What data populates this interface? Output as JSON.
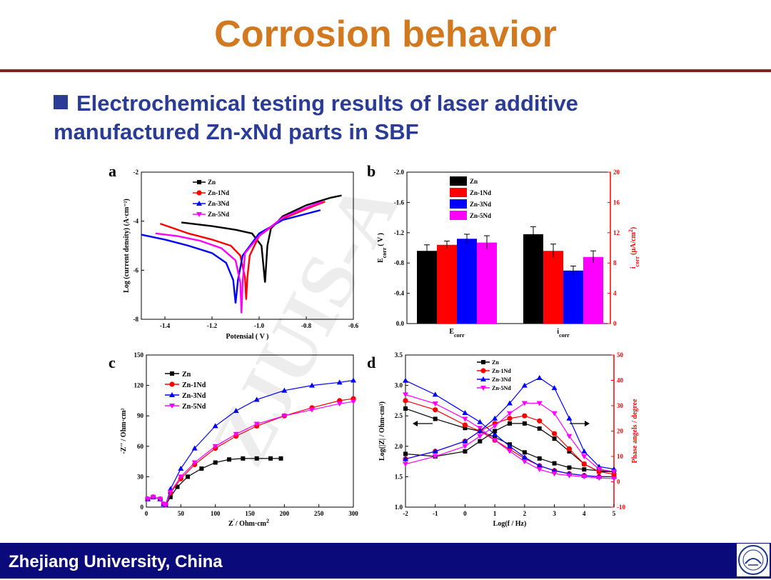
{
  "slide": {
    "title": "Corrosion behavior",
    "subtitle_line1": "Electrochemical testing results of laser additive",
    "subtitle_line2": "manufactured Zn-xNd parts in SBF",
    "footer": "Zhejiang University, China",
    "watermark": "ZJUIS-A"
  },
  "colors": {
    "Zn": "#000000",
    "Zn-1Nd": "#ff0000",
    "Zn-3Nd": "#0000ff",
    "Zn-5Nd": "#ff00ff"
  },
  "chart_data": [
    {
      "panel": "a",
      "type": "line",
      "xlabel": "Potensial ( V )",
      "ylabel": "Log (current density) (A·cm⁻²)",
      "xlim": [
        -1.5,
        -0.6
      ],
      "ylim": [
        -8,
        -2
      ],
      "xticks": [
        "-1.4",
        "-1.2",
        "-1.0",
        "-0.8",
        "-0.6"
      ],
      "yticks": [
        "-2",
        "-4",
        "-6",
        "-8"
      ],
      "series": [
        {
          "name": "Zn",
          "x": [
            -1.33,
            -1.2,
            -1.1,
            -1.03,
            -0.99,
            -0.975,
            -0.965,
            -0.95,
            -0.9,
            -0.8,
            -0.7,
            -0.65
          ],
          "y": [
            -4.05,
            -4.2,
            -4.35,
            -4.5,
            -5.0,
            -6.5,
            -5.0,
            -4.3,
            -3.8,
            -3.35,
            -3.05,
            -2.95
          ]
        },
        {
          "name": "Zn-1Nd",
          "x": [
            -1.42,
            -1.3,
            -1.2,
            -1.12,
            -1.08,
            -1.06,
            -1.055,
            -1.05,
            -1.04,
            -1.0,
            -0.9,
            -0.8,
            -0.72
          ],
          "y": [
            -4.1,
            -4.5,
            -4.75,
            -5.0,
            -5.4,
            -6.3,
            -7.2,
            -6.3,
            -5.4,
            -4.6,
            -3.9,
            -3.5,
            -3.2
          ]
        },
        {
          "name": "Zn-3Nd",
          "x": [
            -1.5,
            -1.4,
            -1.3,
            -1.2,
            -1.14,
            -1.11,
            -1.1,
            -1.09,
            -1.07,
            -1.0,
            -0.9,
            -0.8,
            -0.74
          ],
          "y": [
            -4.55,
            -4.75,
            -5.0,
            -5.3,
            -5.7,
            -6.4,
            -7.35,
            -6.4,
            -5.4,
            -4.5,
            -3.95,
            -3.7,
            -3.55
          ]
        },
        {
          "name": "Zn-5Nd",
          "x": [
            -1.44,
            -1.35,
            -1.25,
            -1.16,
            -1.1,
            -1.08,
            -1.075,
            -1.07,
            -1.06,
            -1.0,
            -0.9,
            -0.8,
            -0.73
          ],
          "y": [
            -4.5,
            -4.6,
            -4.8,
            -5.1,
            -5.6,
            -6.5,
            -7.75,
            -6.5,
            -5.3,
            -4.6,
            -3.85,
            -3.45,
            -3.2
          ]
        }
      ]
    },
    {
      "panel": "b",
      "type": "bar",
      "categories": [
        "E_corr",
        "i_corr"
      ],
      "category_labels": [
        {
          "main": "E",
          "sub": "corr"
        },
        {
          "main": "i",
          "sub": "corr"
        }
      ],
      "left_axis": {
        "label_main": "E",
        "label_sub": "corr",
        "label_unit": "( V )",
        "ylim": [
          -2.0,
          0.0
        ],
        "ticks": [
          "-2.0",
          "-1.6",
          "-1.2",
          "-0.8",
          "-0.4",
          "0.0"
        ]
      },
      "right_axis": {
        "label": "i_corr(μA/cm²)",
        "label_main": "i",
        "label_sub": "corr",
        "label_unit": "(μA/cm",
        "label_sup": "2",
        "label_end": ")",
        "ylim": [
          0,
          20
        ],
        "ticks": [
          "0",
          "4",
          "8",
          "12",
          "16",
          "20"
        ]
      },
      "series": [
        {
          "name": "Zn",
          "E_corr": -0.96,
          "E_err": 0.08,
          "i_corr": 11.8,
          "i_err": 1.0
        },
        {
          "name": "Zn-1Nd",
          "E_corr": -1.04,
          "E_err": 0.05,
          "i_corr": 9.6,
          "i_err": 0.9
        },
        {
          "name": "Zn-3Nd",
          "E_corr": -1.12,
          "E_err": 0.06,
          "i_corr": 7.0,
          "i_err": 0.6
        },
        {
          "name": "Zn-5Nd",
          "E_corr": -1.07,
          "E_err": 0.09,
          "i_corr": 8.8,
          "i_err": 0.8
        }
      ]
    },
    {
      "panel": "c",
      "type": "line",
      "xlabel_main": "Z",
      "xlabel_sup": "'",
      "xlabel_unit": "/ Ohm·cm",
      "xlabel_sup2": "2",
      "ylabel": "-Z'' / Ohm·cm²",
      "xlim": [
        0,
        300
      ],
      "ylim": [
        0,
        150
      ],
      "xticks": [
        "0",
        "50",
        "100",
        "150",
        "200",
        "250",
        "300"
      ],
      "yticks": [
        "0",
        "30",
        "60",
        "90",
        "120",
        "150"
      ],
      "series": [
        {
          "name": "Zn",
          "x": [
            2,
            10,
            20,
            25,
            28,
            35,
            45,
            60,
            80,
            100,
            120,
            140,
            160,
            180,
            195
          ],
          "y": [
            8,
            10,
            8,
            3,
            2,
            10,
            20,
            30,
            38,
            44,
            47,
            48,
            48,
            48,
            48
          ]
        },
        {
          "name": "Zn-1Nd",
          "x": [
            2,
            10,
            20,
            25,
            28,
            35,
            50,
            70,
            100,
            130,
            160,
            200,
            240,
            280,
            300
          ],
          "y": [
            8,
            10,
            8,
            3,
            2,
            14,
            28,
            42,
            58,
            70,
            80,
            90,
            98,
            105,
            107
          ]
        },
        {
          "name": "Zn-3Nd",
          "x": [
            2,
            10,
            20,
            25,
            28,
            35,
            50,
            70,
            100,
            130,
            160,
            200,
            240,
            280,
            300
          ],
          "y": [
            8,
            10,
            8,
            3,
            2,
            18,
            38,
            58,
            80,
            95,
            106,
            115,
            120,
            123,
            125
          ]
        },
        {
          "name": "Zn-5Nd",
          "x": [
            2,
            10,
            20,
            25,
            28,
            35,
            50,
            70,
            100,
            130,
            160,
            200,
            240,
            280,
            300
          ],
          "y": [
            8,
            10,
            8,
            3,
            2,
            15,
            30,
            44,
            60,
            72,
            82,
            90,
            96,
            102,
            104
          ]
        }
      ]
    },
    {
      "panel": "d",
      "type": "line",
      "xlabel": "Log(f / Hz)",
      "ylabel": "Log(|Z| / Ohm·cm²)",
      "y2label": "Phase angels / degree",
      "xlim": [
        -2,
        5
      ],
      "ylim": [
        1.0,
        3.5
      ],
      "y2lim": [
        -10,
        50
      ],
      "xticks": [
        "-2",
        "-1",
        "0",
        "1",
        "2",
        "3",
        "4",
        "5"
      ],
      "yticks": [
        "1.0",
        "1.5",
        "2.0",
        "2.5",
        "3.0",
        "3.5"
      ],
      "y2ticks": [
        "-10",
        "0",
        "10",
        "20",
        "30",
        "40",
        "50"
      ],
      "impedance_series": [
        {
          "name": "Zn",
          "x": [
            -2,
            -1,
            0,
            0.5,
            1,
            1.5,
            2,
            2.5,
            3,
            3.5,
            4,
            4.5,
            5
          ],
          "y": [
            2.62,
            2.45,
            2.3,
            2.25,
            2.15,
            2.03,
            1.9,
            1.8,
            1.72,
            1.65,
            1.62,
            1.6,
            1.58
          ]
        },
        {
          "name": "Zn-1Nd",
          "x": [
            -2,
            -1,
            0,
            0.5,
            1,
            1.5,
            2,
            2.5,
            3,
            3.5,
            4,
            4.5,
            5
          ],
          "y": [
            2.75,
            2.6,
            2.35,
            2.25,
            2.1,
            1.95,
            1.8,
            1.68,
            1.6,
            1.55,
            1.52,
            1.5,
            1.5
          ]
        },
        {
          "name": "Zn-3Nd",
          "x": [
            -2,
            -1,
            0,
            0.5,
            1,
            1.5,
            2,
            2.5,
            3,
            3.5,
            4,
            4.5,
            5
          ],
          "y": [
            3.08,
            2.85,
            2.55,
            2.4,
            2.2,
            2.0,
            1.82,
            1.68,
            1.6,
            1.55,
            1.52,
            1.5,
            1.5
          ]
        },
        {
          "name": "Zn-5Nd",
          "x": [
            -2,
            -1,
            0,
            0.5,
            1,
            1.5,
            2,
            2.5,
            3,
            3.5,
            4,
            4.5,
            5
          ],
          "y": [
            2.85,
            2.7,
            2.45,
            2.3,
            2.1,
            1.92,
            1.75,
            1.62,
            1.55,
            1.52,
            1.5,
            1.48,
            1.47
          ]
        }
      ],
      "phase_series": [
        {
          "name": "Zn",
          "x": [
            -2,
            -1,
            0,
            0.5,
            1,
            1.5,
            2,
            2.5,
            3,
            3.5,
            4,
            4.5,
            5
          ],
          "y": [
            11,
            10,
            12,
            16,
            20,
            23,
            23,
            21,
            17,
            12,
            7,
            4,
            4
          ]
        },
        {
          "name": "Zn-1Nd",
          "x": [
            -2,
            -1,
            0,
            0.5,
            1,
            1.5,
            2,
            2.5,
            3,
            3.5,
            4,
            4.5,
            5
          ],
          "y": [
            9,
            12,
            16,
            20,
            23,
            25,
            26,
            24,
            19,
            13,
            7,
            4,
            3
          ]
        },
        {
          "name": "Zn-3Nd",
          "x": [
            -2,
            -1,
            0,
            0.5,
            1,
            1.5,
            2,
            2.5,
            3,
            3.5,
            4,
            4.5,
            5
          ],
          "y": [
            9,
            12,
            16,
            20,
            25,
            31,
            38,
            41,
            37,
            25,
            12,
            6,
            5
          ]
        },
        {
          "name": "Zn-5Nd",
          "x": [
            -2,
            -1,
            0,
            0.5,
            1,
            1.5,
            2,
            2.5,
            3,
            3.5,
            4,
            4.5,
            5
          ],
          "y": [
            7,
            10,
            14,
            18,
            22,
            27,
            31,
            31,
            27,
            18,
            10,
            5,
            4
          ]
        }
      ]
    }
  ]
}
